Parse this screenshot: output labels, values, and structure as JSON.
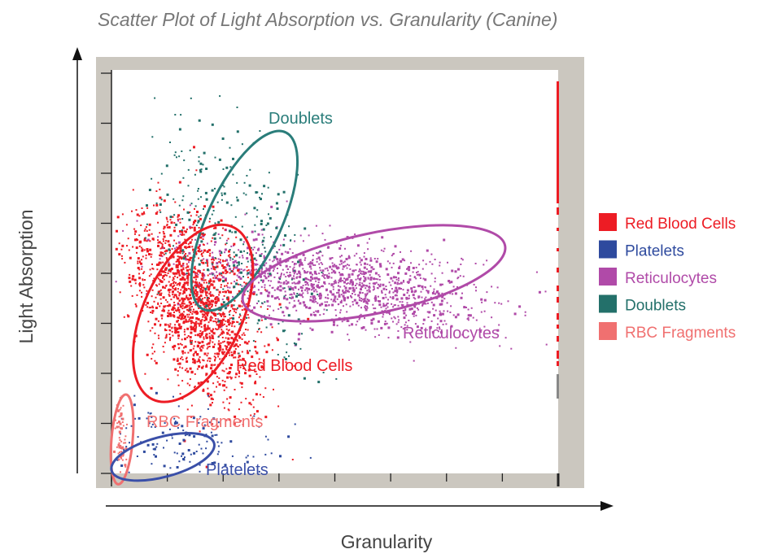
{
  "chart_data": {
    "type": "scatter",
    "title": "Scatter Plot of Light Absorption vs. Granularity (Canine)",
    "xlabel": "Granularity",
    "ylabel": "Light Absorption",
    "x_tick_count": 9,
    "y_tick_count": 9,
    "tick_labels_shown": false,
    "xlim": [
      0,
      8
    ],
    "ylim": [
      0,
      8
    ],
    "grid": false,
    "legend_position": "right",
    "series": [
      {
        "name": "Red Blood Cells",
        "color": "#ed1c24",
        "cluster": {
          "cx": 1.5,
          "cy": 3.4,
          "sdx": 0.45,
          "sdy": 0.95,
          "angle": 25,
          "count": 1600
        }
      },
      {
        "name": "Platelets",
        "color": "#2e4a9e",
        "cluster": {
          "cx": 1.2,
          "cy": 0.6,
          "sdx": 0.9,
          "sdy": 0.45,
          "angle": -10,
          "count": 170
        }
      },
      {
        "name": "Reticulocytes",
        "color": "#b04aa8",
        "cluster": {
          "cx": 4.0,
          "cy": 3.8,
          "sdx": 1.3,
          "sdy": 0.4,
          "angle": -8,
          "count": 1300
        }
      },
      {
        "name": "Doublets",
        "color": "#23706a",
        "cluster": {
          "cx": 2.2,
          "cy": 4.6,
          "sdx": 0.55,
          "sdy": 1.3,
          "angle": 25,
          "count": 320
        }
      },
      {
        "name": "RBC Fragments",
        "color": "#f07070",
        "cluster": {
          "cx": 0.15,
          "cy": 0.8,
          "sdx": 0.05,
          "sdy": 0.45,
          "angle": 0,
          "count": 70
        }
      }
    ],
    "gates": [
      {
        "label": "Doublets",
        "color": "#2a7d7a",
        "cx": 2.38,
        "cy": 5.05,
        "rx": 0.66,
        "ry": 1.95,
        "angle": 25
      },
      {
        "label": "Red Blood Cells",
        "color": "#ed1c24",
        "cx": 1.46,
        "cy": 3.2,
        "rx": 0.88,
        "ry": 1.9,
        "angle": 25
      },
      {
        "label": "Reticulocytes",
        "color": "#b04aa8",
        "cx": 4.7,
        "cy": 4.0,
        "rx": 2.4,
        "ry": 0.8,
        "angle": -12
      },
      {
        "label": "RBC Fragments",
        "color": "#f07070",
        "cx": 0.19,
        "cy": 0.68,
        "rx": 0.19,
        "ry": 0.9,
        "angle": 5
      },
      {
        "label": "Platelets",
        "color": "#3a4fa8",
        "cx": 0.92,
        "cy": 0.33,
        "rx": 0.95,
        "ry": 0.4,
        "angle": -15
      }
    ]
  }
}
